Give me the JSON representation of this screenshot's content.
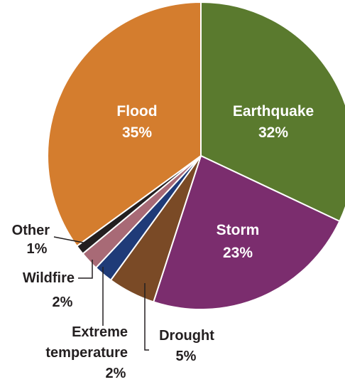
{
  "chart_data": {
    "type": "pie",
    "title": "",
    "slices": [
      {
        "category": "Earthquake",
        "value": 32,
        "label": "32%",
        "color": "#5a7a2e",
        "label_inside": true
      },
      {
        "category": "Storm",
        "value": 23,
        "label": "23%",
        "color": "#7b2d6e",
        "label_inside": true
      },
      {
        "category": "Drought",
        "value": 5,
        "label": "5%",
        "color": "#7a4a26",
        "label_inside": false
      },
      {
        "category": "Extreme temperature",
        "value": 2,
        "label": "2%",
        "color": "#1f3b78",
        "label_inside": false
      },
      {
        "category": "Wildfire",
        "value": 2,
        "label": "2%",
        "color": "#a86a76",
        "label_inside": false
      },
      {
        "category": "Other",
        "value": 1,
        "label": "1%",
        "color": "#231f20",
        "label_inside": false
      },
      {
        "category": "Flood",
        "value": 35,
        "label": "35%",
        "color": "#d47d2e",
        "label_inside": true
      }
    ],
    "outer_labels": {
      "other": {
        "name": "Other",
        "pct": "1%"
      },
      "wildfire": {
        "name": "Wildfire",
        "pct": "2%"
      },
      "extreme": {
        "name_line1": "Extreme",
        "name_line2": "temperature",
        "pct": "2%"
      },
      "drought": {
        "name": "Drought",
        "pct": "5%"
      }
    }
  }
}
